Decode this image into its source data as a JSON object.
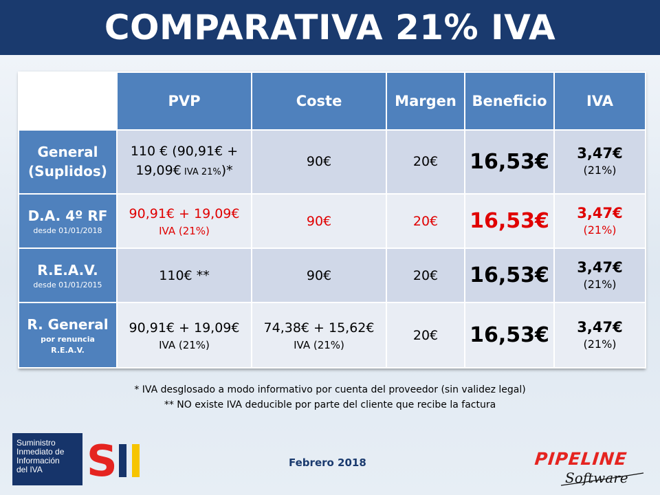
{
  "header": {
    "title": "COMPARATIVA 21% IVA"
  },
  "table": {
    "columns": [
      "PVP",
      "Coste",
      "Margen",
      "Beneficio",
      "IVA"
    ],
    "rows": [
      {
        "label": "General",
        "label2": "(Suplidos)",
        "pvp_line1": "110 € (90,91€ +",
        "pvp_line2": "19,09€",
        "pvp_line2_small": " IVA 21%",
        "pvp_line2_end": ")*",
        "coste": "90€",
        "margen": "20€",
        "beneficio": "16,53€",
        "iva": "3,47€",
        "iva_pct": "(21%)"
      },
      {
        "label": "D.A. 4º RF",
        "sub": "desde 01/01/2018",
        "pvp_line1": "90,91€ + 19,09€",
        "pvp_line2": "IVA (21%)",
        "coste": "90€",
        "margen": "20€",
        "beneficio": "16,53€",
        "iva": "3,47€",
        "iva_pct": "(21%)",
        "highlight_color": "#e00000"
      },
      {
        "label": "R.E.A.V.",
        "sub": "desde 01/01/2015",
        "pvp_line1": "110€ **",
        "coste": "90€",
        "margen": "20€",
        "beneficio": "16,53€",
        "iva": "3,47€",
        "iva_pct": "(21%)"
      },
      {
        "label": "R. General",
        "sub": "por renuncia",
        "sub2": "R.E.A.V.",
        "pvp_line1": "90,91€ + 19,09€",
        "pvp_line2": "IVA (21%)",
        "coste_line1": "74,38€ + 15,62€",
        "coste_line2": "IVA (21%)",
        "margen": "20€",
        "beneficio": "16,53€",
        "iva": "3,47€",
        "iva_pct": "(21%)"
      }
    ]
  },
  "notes": {
    "note1": "* IVA desglosado a modo informativo por cuenta del proveedor (sin validez legal)",
    "note2": "** NO existe IVA deducible por parte del cliente que recibe la factura"
  },
  "footer": {
    "date": "Febrero 2018",
    "sii_line1": "Suministro",
    "sii_line2": "Inmediato de",
    "sii_line3": "Información",
    "sii_line4": "del IVA",
    "sii_letters": "SII",
    "pipeline_word": "PIPELINE",
    "pipeline_sub": "Software"
  },
  "colors": {
    "header_bg": "#1a3a6e",
    "col_header_bg": "#4f81bd",
    "row_alt_1": "#d0d8e8",
    "row_alt_2": "#e9edf4",
    "highlight_red": "#e00000"
  }
}
